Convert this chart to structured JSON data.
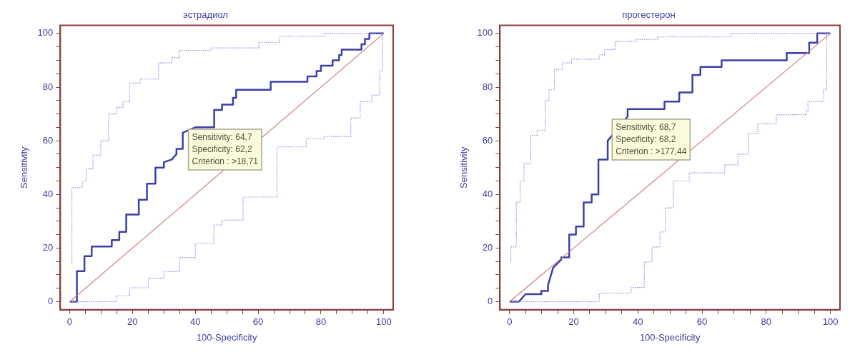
{
  "chart_data": [
    {
      "type": "line",
      "title": "эстрадиол",
      "xlabel": "100-Specificity",
      "ylabel": "Sensitivity",
      "xlim": [
        -3,
        103
      ],
      "ylim": [
        -3,
        103
      ],
      "xticks": [
        0,
        {
          "value": 5,
          "label": null
        },
        {
          "value": 10,
          "label": null
        },
        {
          "value": 15,
          "label": null
        },
        20,
        {
          "value": 25,
          "label": null
        },
        {
          "value": 30,
          "label": null
        },
        {
          "value": 35,
          "label": null
        },
        40,
        {
          "value": 45,
          "label": null
        },
        {
          "value": 50,
          "label": null
        },
        {
          "value": 55,
          "label": null
        },
        60,
        {
          "value": 65,
          "label": null
        },
        {
          "value": 70,
          "label": null
        },
        {
          "value": 75,
          "label": null
        },
        80,
        {
          "value": 85,
          "label": null
        },
        {
          "value": 90,
          "label": null
        },
        {
          "value": 95,
          "label": null
        },
        100
      ],
      "yticks": [
        0,
        {
          "value": 5,
          "label": null
        },
        {
          "value": 10,
          "label": null
        },
        {
          "value": 15,
          "label": null
        },
        20,
        {
          "value": 25,
          "label": null
        },
        {
          "value": 30,
          "label": null
        },
        {
          "value": 35,
          "label": null
        },
        40,
        {
          "value": 45,
          "label": null
        },
        {
          "value": 50,
          "label": null
        },
        {
          "value": 55,
          "label": null
        },
        60,
        {
          "value": 65,
          "label": null
        },
        {
          "value": 70,
          "label": null
        },
        {
          "value": 75,
          "label": null
        },
        80,
        {
          "value": 85,
          "label": null
        },
        {
          "value": 90,
          "label": null
        },
        {
          "value": 95,
          "label": null
        },
        100
      ],
      "grid": false,
      "legend": false,
      "series": [
        {
          "type": "line",
          "color": "#3b3fa8",
          "line_style": "solid",
          "x": [
            0,
            2.3,
            2.3,
            4.7,
            4.7,
            7,
            7,
            13.4,
            13.4,
            15.8,
            15.8,
            18,
            18,
            22,
            22,
            24.6,
            24.6,
            27.3,
            27.3,
            30,
            30,
            32.5,
            34,
            34,
            36,
            36,
            40,
            46,
            46,
            48.5,
            48.5,
            52,
            52,
            53,
            53,
            64,
            64,
            75.7,
            75.7,
            78.6,
            78.6,
            80,
            80,
            83.7,
            83.7,
            85.8,
            85.8,
            86.6,
            86.6,
            92.9,
            92.9,
            94,
            94,
            95.4,
            95.4,
            100
          ],
          "values": [
            0,
            0,
            11.4,
            11.4,
            17,
            17,
            20.6,
            20.6,
            23,
            23,
            26,
            26,
            32.5,
            32.5,
            38,
            38,
            44,
            44,
            50,
            50,
            52,
            53,
            55,
            57,
            57,
            63,
            65,
            65,
            71.5,
            71.5,
            73.5,
            73.5,
            76,
            76,
            79,
            79,
            82,
            82,
            84,
            84,
            86,
            86,
            88,
            88,
            90,
            90,
            92,
            92,
            94,
            94,
            96,
            96,
            98,
            98,
            100,
            100
          ]
        },
        {
          "type": "step",
          "color": "#8c8fe0",
          "line_style": "dotted",
          "x": [
            0.7,
            0.7,
            4,
            5.3,
            7.4,
            9.9,
            12.4,
            14.9,
            17,
            19.1,
            22.5,
            28.3,
            32.5,
            35,
            45,
            60.2,
            66.9,
            81.1,
            100
          ],
          "values": [
            14,
            40,
            42.5,
            45,
            49.5,
            54.6,
            60,
            70,
            72.4,
            74.6,
            81.5,
            83,
            89,
            91,
            93.7,
            94.6,
            96.7,
            98.9,
            100
          ]
        },
        {
          "type": "step",
          "color": "#8c8fe0",
          "line_style": "dotted",
          "x": [
            0,
            14.9,
            19.1,
            25,
            30,
            35,
            40,
            45.9,
            48.5,
            55.2,
            66,
            66,
            75.3,
            81.1,
            89.5,
            92.5,
            96.2,
            98.7,
            99.6,
            100
          ],
          "values": [
            0,
            0,
            2.2,
            5.2,
            8.7,
            11.3,
            16.5,
            21.7,
            28.6,
            30.4,
            39,
            42.5,
            57.7,
            60.7,
            61.6,
            68.5,
            74.6,
            77,
            86,
            100
          ]
        },
        {
          "type": "line",
          "color": "#d08080",
          "line_style": "solid",
          "x": [
            0,
            100
          ],
          "values": [
            0,
            100
          ]
        }
      ],
      "annotations": [
        "Sensitivity: 64,7\nSpecificity: 62,2\nCriterion : >18,71"
      ]
    },
    {
      "type": "line",
      "title": "прогестерон",
      "xlabel": "100-Specificity",
      "ylabel": "Sensitivity",
      "xlim": [
        -3,
        103
      ],
      "ylim": [
        -3,
        103
      ],
      "xticks": [
        0,
        {
          "value": 5,
          "label": null
        },
        {
          "value": 10,
          "label": null
        },
        {
          "value": 15,
          "label": null
        },
        20,
        {
          "value": 25,
          "label": null
        },
        {
          "value": 30,
          "label": null
        },
        {
          "value": 35,
          "label": null
        },
        40,
        {
          "value": 45,
          "label": null
        },
        {
          "value": 50,
          "label": null
        },
        {
          "value": 55,
          "label": null
        },
        60,
        {
          "value": 65,
          "label": null
        },
        {
          "value": 70,
          "label": null
        },
        {
          "value": 75,
          "label": null
        },
        80,
        {
          "value": 85,
          "label": null
        },
        {
          "value": 90,
          "label": null
        },
        {
          "value": 95,
          "label": null
        },
        100
      ],
      "yticks": [
        0,
        {
          "value": 5,
          "label": null
        },
        {
          "value": 10,
          "label": null
        },
        {
          "value": 15,
          "label": null
        },
        20,
        {
          "value": 25,
          "label": null
        },
        {
          "value": 30,
          "label": null
        },
        {
          "value": 35,
          "label": null
        },
        40,
        {
          "value": 45,
          "label": null
        },
        {
          "value": 50,
          "label": null
        },
        {
          "value": 55,
          "label": null
        },
        60,
        {
          "value": 65,
          "label": null
        },
        {
          "value": 70,
          "label": null
        },
        {
          "value": 75,
          "label": null
        },
        80,
        {
          "value": 85,
          "label": null
        },
        {
          "value": 90,
          "label": null
        },
        {
          "value": 95,
          "label": null
        },
        100
      ],
      "grid": false,
      "legend": false,
      "series": [
        {
          "type": "line",
          "color": "#3b3fa8",
          "line_style": "solid",
          "x": [
            0,
            2.9,
            5,
            9.9,
            9.9,
            12,
            12,
            13.6,
            13.6,
            16.1,
            16.1,
            18.6,
            18.6,
            20.7,
            20.7,
            23.1,
            23.1,
            25.6,
            25.6,
            27.7,
            27.7,
            30.6,
            30.6,
            36.8,
            36.8,
            48.3,
            48.3,
            52.9,
            52.9,
            57,
            57,
            59.5,
            59.5,
            66.1,
            66.1,
            86.4,
            86.4,
            93.4,
            93.4,
            95.9,
            95.9,
            100
          ],
          "values": [
            0,
            0,
            2.8,
            2.8,
            4,
            4,
            6.2,
            12.7,
            12.7,
            15.7,
            16.5,
            16.5,
            25,
            25,
            28,
            28,
            37,
            37,
            40,
            40,
            53,
            53,
            60,
            69,
            71.8,
            71.8,
            74.6,
            74.6,
            78,
            78,
            84.5,
            84.5,
            87.5,
            87.5,
            90,
            90,
            92.7,
            92.7,
            96.6,
            96.6,
            100,
            100
          ]
        },
        {
          "type": "step",
          "color": "#8c8fe0",
          "line_style": "dotted",
          "x": [
            0.4,
            0.4,
            2.1,
            3.3,
            4.5,
            6.6,
            8.6,
            11.1,
            12.3,
            14,
            16.5,
            19.3,
            28,
            29.6,
            32.9,
            39.5,
            46.1,
            69.1,
            80.7,
            100
          ],
          "values": [
            14.8,
            20.4,
            20.4,
            37.2,
            45,
            51.5,
            62,
            63.9,
            75,
            79,
            86.6,
            89,
            90.4,
            92,
            94,
            97,
            97.8,
            98.7,
            100,
            100
          ]
        },
        {
          "type": "step",
          "color": "#8c8fe0",
          "line_style": "dotted",
          "x": [
            0,
            28,
            37.9,
            42,
            44.4,
            46.9,
            48.6,
            51,
            56,
            67.1,
            71.2,
            74.5,
            77.4,
            83.1,
            92.6,
            93,
            97.9,
            98.8,
            100
          ],
          "values": [
            0,
            0,
            3.2,
            5.3,
            14.8,
            20.4,
            26,
            35,
            45,
            48,
            51,
            55,
            62.8,
            66.3,
            69.7,
            71,
            74.6,
            79,
            100
          ]
        },
        {
          "type": "line",
          "color": "#d08080",
          "line_style": "solid",
          "x": [
            0,
            100
          ],
          "values": [
            0,
            100
          ]
        }
      ],
      "annotations": [
        "Sensitivity: 68,7\nSpecificity: 68,2\nCriterion : >177,44"
      ]
    }
  ]
}
